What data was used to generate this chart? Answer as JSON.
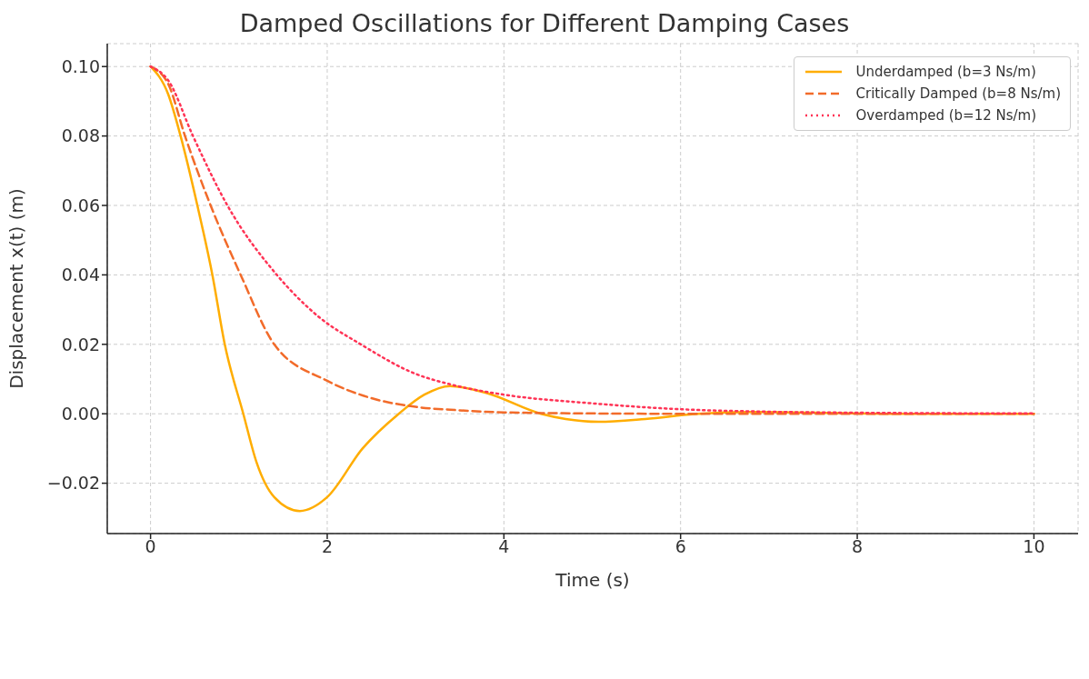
{
  "chart_data": {
    "type": "line",
    "title": "Damped Oscillations for Different Damping Cases",
    "xlabel": "Time (s)",
    "ylabel": "Displacement x(t) (m)",
    "xlim": [
      -0.49,
      10.5
    ],
    "ylim": [
      -0.0345,
      0.1066
    ],
    "xticks": [
      0,
      2,
      4,
      6,
      8,
      10
    ],
    "yticks": [
      {
        "value": -0.02,
        "label": "−0.02"
      },
      {
        "value": 0,
        "label": "0.00"
      },
      {
        "value": 0.02,
        "label": "0.02"
      },
      {
        "value": 0.04,
        "label": "0.04"
      },
      {
        "value": 0.06,
        "label": "0.06"
      },
      {
        "value": 0.08,
        "label": "0.08"
      },
      {
        "value": 0.1,
        "label": "0.10"
      }
    ],
    "grid": true,
    "legend": "top right",
    "series": [
      {
        "name": "Underdamped (b=3 Ns/m)",
        "color": "#ffad00",
        "line_style": "solid",
        "x": [
          0,
          0.2,
          0.34,
          0.53,
          0.7,
          0.84,
          1.05,
          1.2,
          1.4,
          1.69,
          2.0,
          2.4,
          2.81,
          3.1,
          3.39,
          3.8,
          4.42,
          4.7,
          5.07,
          5.6,
          6.2,
          6.8,
          7.5,
          8.5,
          10
        ],
        "values": [
          0.1,
          0.092,
          0.08,
          0.06,
          0.04,
          0.02,
          0,
          -0.014,
          -0.024,
          -0.028,
          -0.024,
          -0.01,
          0,
          0.0055,
          0.008,
          0.006,
          0,
          -0.0015,
          -0.0023,
          -0.0015,
          0,
          0.0005,
          0.0003,
          0,
          0
        ]
      },
      {
        "name": "Critically Damped (b=8 Ns/m)",
        "color": "#f26b2a",
        "line_style": "dashed",
        "x": [
          0,
          0.2,
          0.39,
          0.68,
          1.02,
          1.4,
          2.0,
          2.5,
          3.0,
          3.5,
          4,
          5,
          6,
          10
        ],
        "values": [
          0.1,
          0.095,
          0.08,
          0.06,
          0.04,
          0.02,
          0.0095,
          0.0045,
          0.002,
          0.001,
          0.0004,
          0.0001,
          0,
          0
        ]
      },
      {
        "name": "Overdamped (b=12 Ns/m)",
        "color": "#ff3355",
        "line_style": "dotted",
        "x": [
          0,
          0.2,
          0.48,
          0.87,
          1.43,
          1.9,
          2.38,
          3,
          3.39,
          4,
          5,
          6,
          7,
          8,
          10
        ],
        "values": [
          0.1,
          0.096,
          0.08,
          0.06,
          0.04,
          0.028,
          0.02,
          0.0115,
          0.0085,
          0.0055,
          0.003,
          0.0013,
          0.0006,
          0.0003,
          0.0001
        ]
      }
    ]
  }
}
